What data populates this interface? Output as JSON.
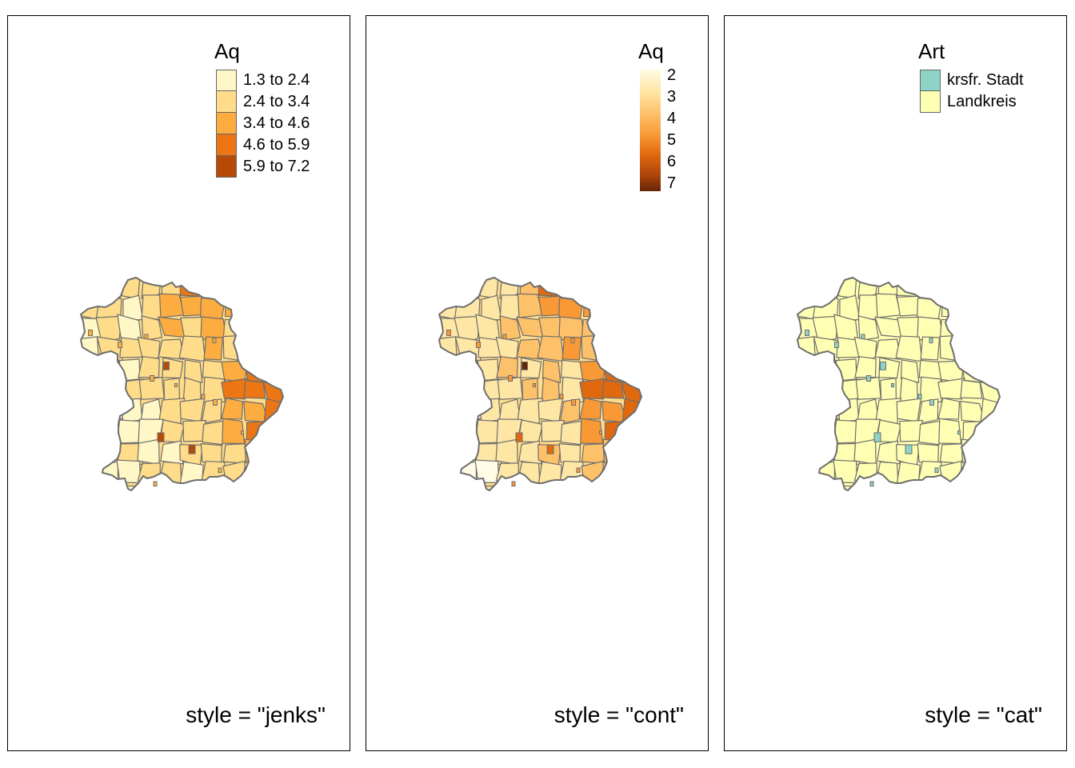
{
  "panels": [
    {
      "legend_type": "classes",
      "legend_title": "Aq",
      "classes": [
        {
          "label": "1.3 to 2.4",
          "color": "#FFF7C6"
        },
        {
          "label": "2.4 to 3.4",
          "color": "#FEDC8A"
        },
        {
          "label": "3.4 to 4.6",
          "color": "#FDAD3F"
        },
        {
          "label": "4.6 to 5.9",
          "color": "#EC7514"
        },
        {
          "label": "5.9 to 7.2",
          "color": "#B84A08"
        }
      ],
      "caption": "style = \"jenks\""
    },
    {
      "legend_type": "continuous",
      "legend_title": "Aq",
      "ticks": [
        "2",
        "3",
        "4",
        "5",
        "6",
        "7"
      ],
      "caption": "style = \"cont\""
    },
    {
      "legend_type": "classes",
      "legend_title": "Art",
      "classes": [
        {
          "label": "krsfr. Stadt",
          "color": "#8DD3C7"
        },
        {
          "label": "Landkreis",
          "color": "#FFFFB3"
        }
      ],
      "caption": "style = \"cat\""
    }
  ]
}
